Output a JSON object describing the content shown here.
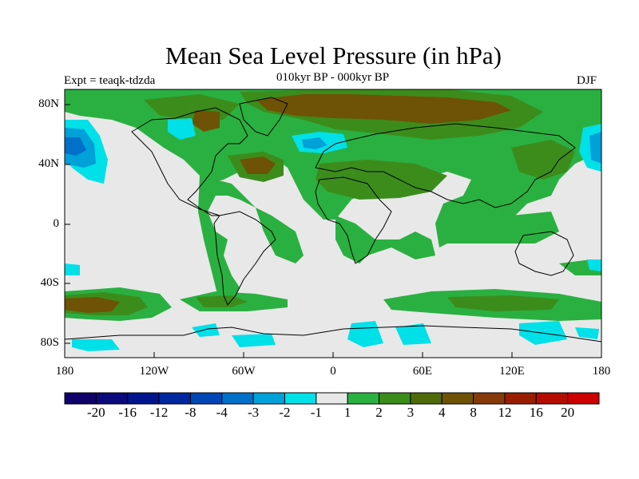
{
  "title": "Mean Sea Level Pressure (in hPa)",
  "subtitle": "010kyr BP - 000kyr BP",
  "experiment": "Expt = teaqk-tdzda",
  "season": "DJF",
  "lat_labels": [
    "80N",
    "40N",
    "0",
    "40S",
    "80S"
  ],
  "lon_labels": [
    "180",
    "120W",
    "60W",
    "0",
    "60E",
    "120E",
    "180"
  ],
  "colorbar": {
    "labels": [
      "-20",
      "-16",
      "-12",
      "-8",
      "-4",
      "-3",
      "-2",
      "-1",
      "1",
      "2",
      "3",
      "4",
      "8",
      "12",
      "16",
      "20"
    ],
    "colors": [
      "#10006a",
      "#0a0a7a",
      "#00148c",
      "#0028a0",
      "#0046b4",
      "#0070c8",
      "#00a0d8",
      "#00e0e8",
      "#e8e8e8",
      "#2ab040",
      "#3c8c1c",
      "#4f6a0a",
      "#6e5205",
      "#853a0a",
      "#991e00",
      "#b40c00",
      "#cc0000"
    ]
  },
  "map": {
    "ocean_fill": "#e8e8e8",
    "colors": {
      "green": "#2ab040",
      "olive": "#3c8c1c",
      "brown": "#6e5205",
      "cyan": "#00e0e8",
      "blue": "#00a0d8",
      "darkblue": "#0070c8",
      "coast": "#000000"
    }
  }
}
